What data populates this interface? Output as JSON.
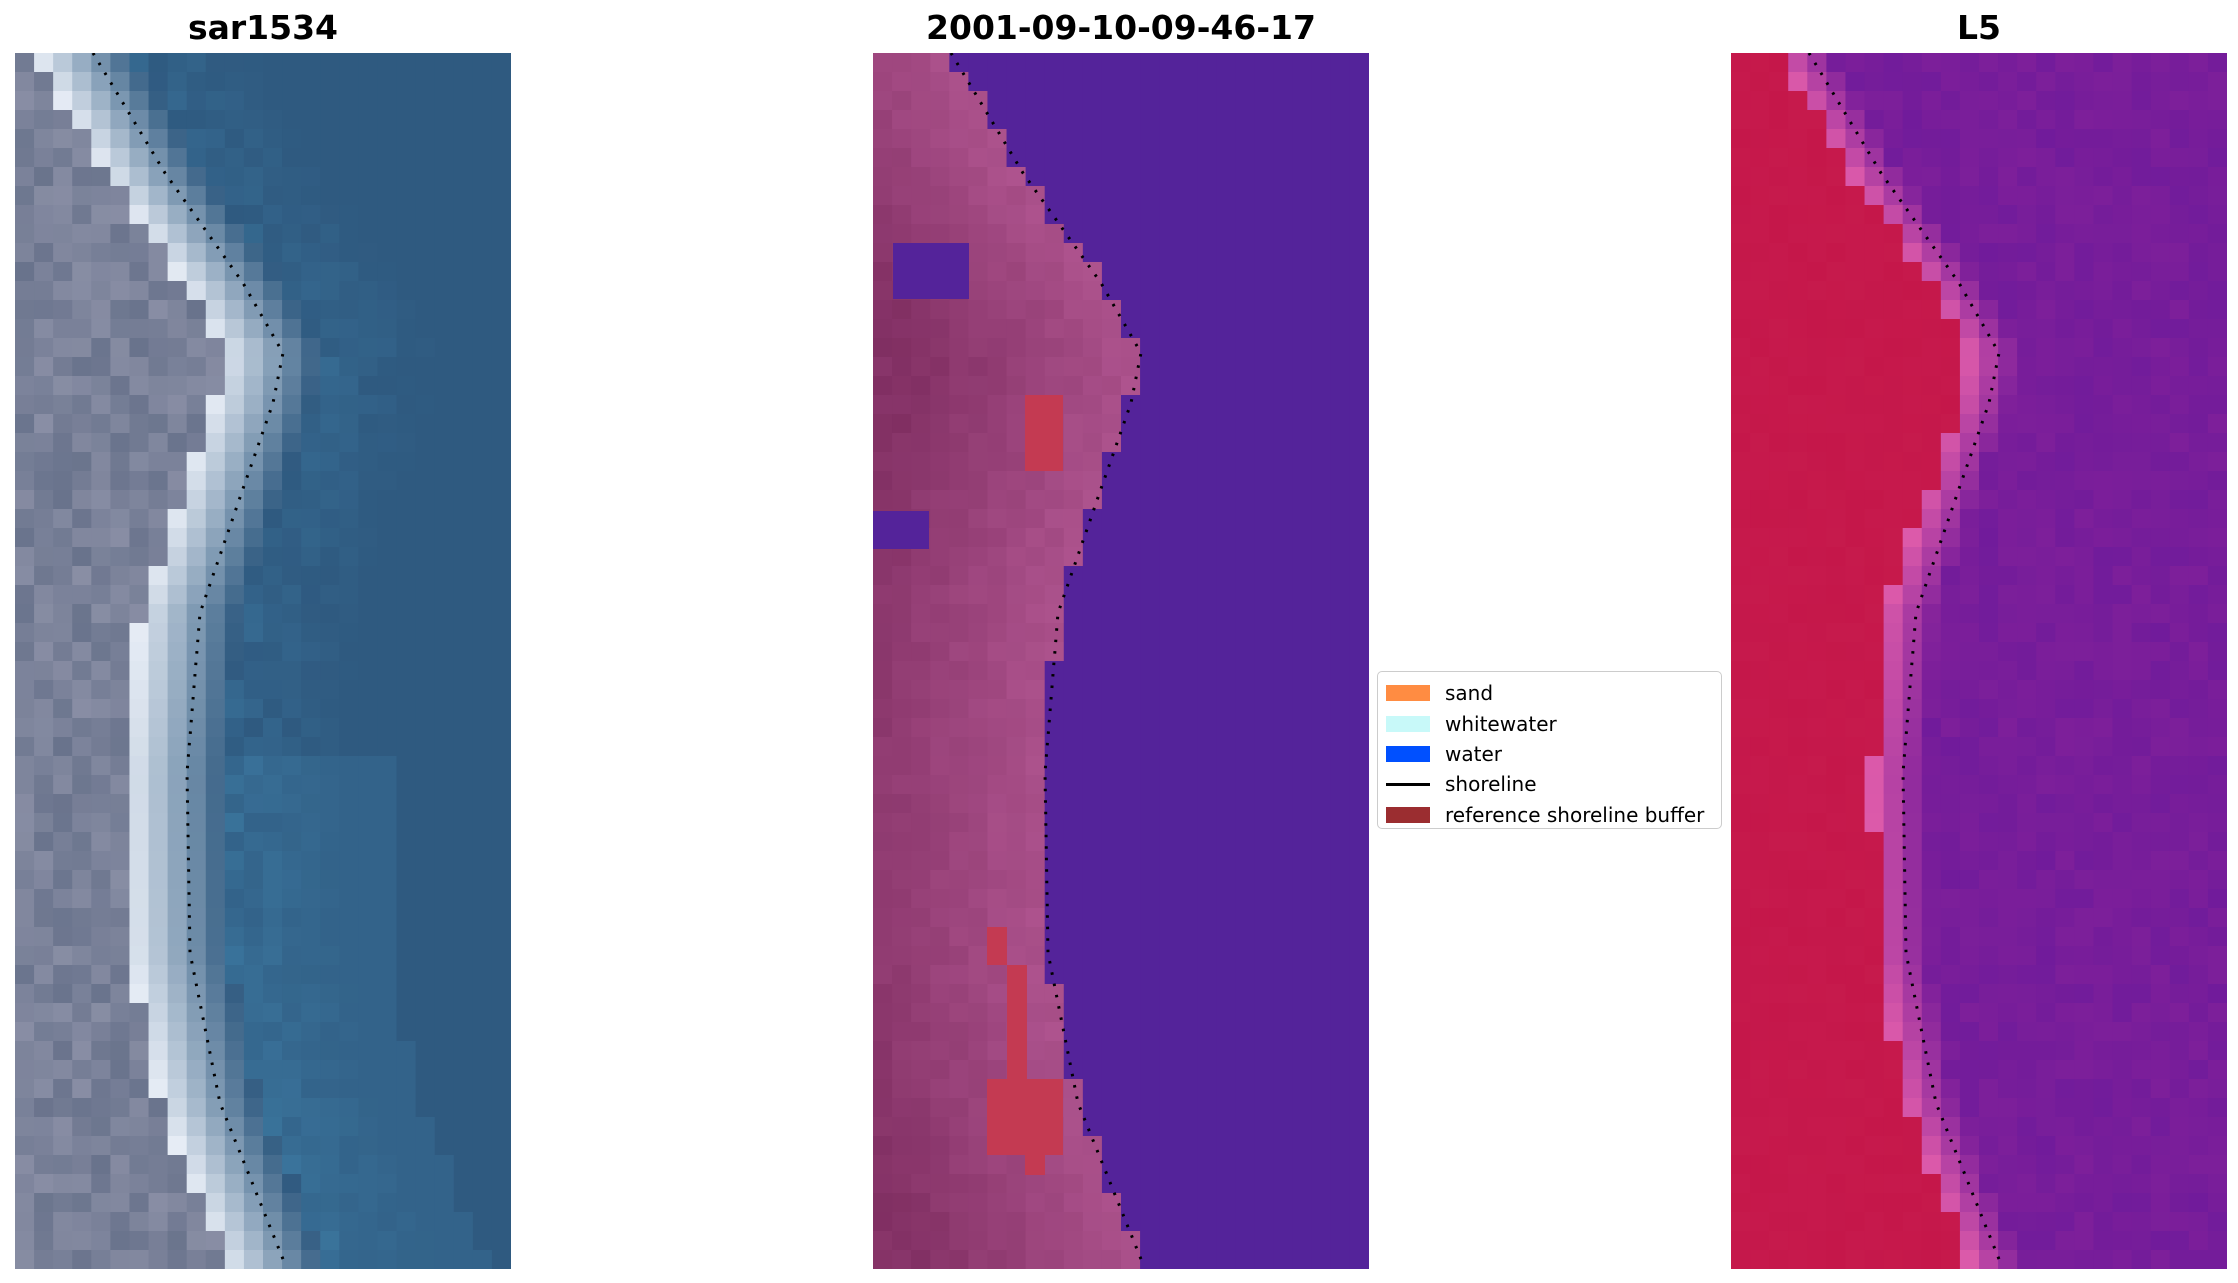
{
  "panels": [
    {
      "title": "sar1534",
      "style": "rgb"
    },
    {
      "title": "2001-09-10-09-46-17",
      "style": "classified"
    },
    {
      "title": "L5",
      "style": "index"
    }
  ],
  "legend": {
    "items": [
      {
        "label": "sand",
        "kind": "patch",
        "color": "#ff8c42"
      },
      {
        "label": "whitewater",
        "kind": "patch",
        "color": "#c8f9f9"
      },
      {
        "label": "water",
        "kind": "patch",
        "color": "#0050ff"
      },
      {
        "label": "shoreline",
        "kind": "line",
        "color": "#000000"
      },
      {
        "label": "reference shoreline buffer",
        "kind": "patch",
        "color": "#9b2d30"
      }
    ]
  },
  "colors": {
    "rgb_water": "#2f5a80",
    "rgb_beach": "#e6ecf5",
    "classified_water": "#54239a",
    "classified_land": "#b05590",
    "classified_buffer": "#c43a52",
    "index_water": "#7d1f9a",
    "index_land": "#c5174a",
    "shoreline": "#000000"
  }
}
